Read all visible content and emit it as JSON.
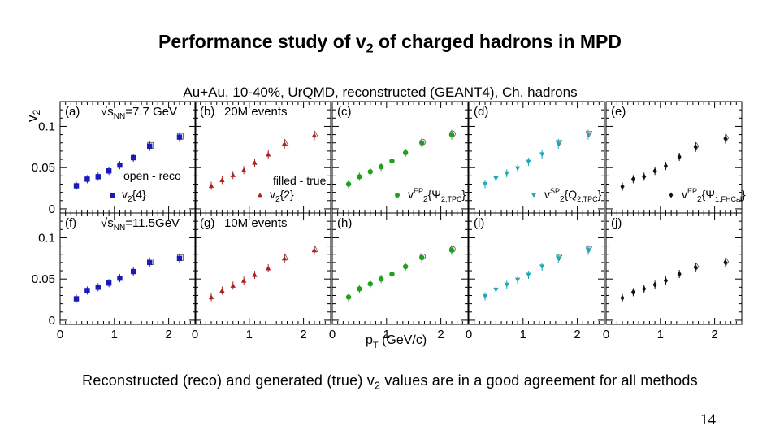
{
  "slide": {
    "title_prefix": "Performance study of ",
    "title_v": "v",
    "title_sub": "2",
    "title_suffix": " of charged hadrons in MPD",
    "caption_prefix": "Reconstructed (reco) and generated (true) v",
    "caption_sub": "2",
    "caption_suffix": " values are in a good agreement for all methods",
    "page_number": "14"
  },
  "chart_data": {
    "type": "scatter",
    "title": "Au+Au, 10-40%, UrQMD, reconstructed (GEANT4), Ch. hadrons",
    "ylabel": "v2",
    "ylabel_main": "v",
    "ylabel_sub": "2",
    "xlabel": "p_T (GeV/c)",
    "xlabel_main": "p",
    "xlabel_sub": "T",
    "xlabel_unit": " (GeV/c)",
    "xlim": [
      0,
      2.5
    ],
    "ylim": [
      -0.005,
      0.13
    ],
    "xticks": [
      "0",
      "1",
      "2"
    ],
    "yticks": [
      "0",
      "0.05",
      "0.1"
    ],
    "grid": false,
    "pt": [
      0.3,
      0.5,
      0.7,
      0.9,
      1.1,
      1.35,
      1.65,
      2.2
    ],
    "columns": [
      {
        "label": "(b)",
        "text": "20M events",
        "color": "#aa2222",
        "marker": "triangle-up"
      },
      {
        "label": "(c)",
        "text": "",
        "color": "#20a020",
        "marker": "circle"
      },
      {
        "label": "(d)",
        "text": "",
        "color": "#20a8b8",
        "marker": "triangle-down"
      },
      {
        "label": "(e)",
        "text": "",
        "color": "#111111",
        "marker": "diamond"
      }
    ],
    "column_a": {
      "label": "(a)",
      "energy_main": "√s",
      "energy_sub": "NN",
      "energy_val": "=7.7 GeV",
      "color": "#1a1ab8",
      "marker": "square"
    },
    "row2": {
      "labels": [
        "(f)",
        "(g)",
        "(h)",
        "(i)",
        "(j)"
      ],
      "energy_val": "=11.5GeV",
      "events": "10M events"
    },
    "legends": {
      "open_reco": "open - reco",
      "filled_true": "filled - true",
      "a": {
        "v": "v",
        "sub": "2",
        "rest": "{4}"
      },
      "b": {
        "v": "v",
        "sub": "2",
        "rest": "{2}"
      },
      "c": {
        "v": "v",
        "sub": "2",
        "sup": "EP",
        "arg": "{Ψ",
        "argsub": "2,TPC",
        "close": "}"
      },
      "d": {
        "v": "v",
        "sub": "2",
        "sup": "SP",
        "arg": "{Q",
        "argsub": "2,TPC",
        "close": "}"
      },
      "e": {
        "v": "v",
        "sub": "2",
        "sup": "EP",
        "arg": "{Ψ",
        "argsub": "1,FHCal",
        "close": "}"
      }
    },
    "series": [
      {
        "name": "(a) v2{4} 7.7 GeV",
        "values": [
          0.028,
          0.036,
          0.039,
          0.046,
          0.053,
          0.062,
          0.076,
          0.087
        ]
      },
      {
        "name": "(b) v2{2} 7.7 GeV",
        "values": [
          0.028,
          0.035,
          0.041,
          0.047,
          0.056,
          0.066,
          0.079,
          0.089
        ]
      },
      {
        "name": "(c) v2EP 7.7 GeV",
        "values": [
          0.03,
          0.039,
          0.045,
          0.051,
          0.058,
          0.068,
          0.08,
          0.09
        ]
      },
      {
        "name": "(d) v2SP 7.7 GeV",
        "values": [
          0.03,
          0.037,
          0.043,
          0.049,
          0.057,
          0.066,
          0.079,
          0.09
        ]
      },
      {
        "name": "(e) v2EP FHCal 7.7 GeV",
        "values": [
          0.027,
          0.036,
          0.039,
          0.046,
          0.052,
          0.063,
          0.075,
          0.085
        ]
      },
      {
        "name": "(f) v2{4} 11.5 GeV",
        "values": [
          0.026,
          0.036,
          0.04,
          0.045,
          0.051,
          0.059,
          0.07,
          0.075
        ]
      },
      {
        "name": "(g) v2{2} 11.5 GeV",
        "values": [
          0.028,
          0.036,
          0.042,
          0.048,
          0.055,
          0.063,
          0.075,
          0.085
        ]
      },
      {
        "name": "(h) v2EP 11.5 GeV",
        "values": [
          0.028,
          0.038,
          0.044,
          0.05,
          0.056,
          0.065,
          0.076,
          0.085
        ]
      },
      {
        "name": "(i) v2SP 11.5 GeV",
        "values": [
          0.029,
          0.037,
          0.043,
          0.049,
          0.055,
          0.065,
          0.075,
          0.085
        ]
      },
      {
        "name": "(j) v2EP FHCal 11.5 GeV",
        "values": [
          0.027,
          0.034,
          0.038,
          0.043,
          0.048,
          0.056,
          0.064,
          0.07
        ]
      }
    ]
  }
}
